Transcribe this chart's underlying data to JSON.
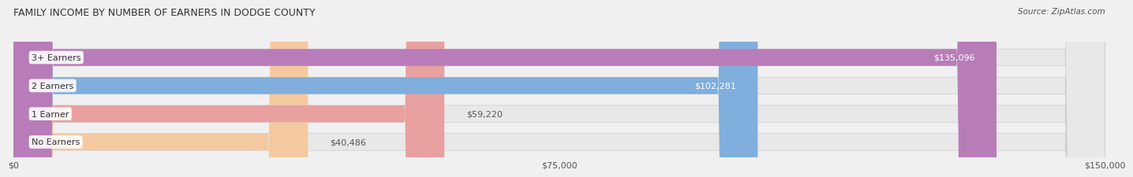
{
  "title": "FAMILY INCOME BY NUMBER OF EARNERS IN DODGE COUNTY",
  "source": "Source: ZipAtlas.com",
  "categories": [
    "No Earners",
    "1 Earner",
    "2 Earners",
    "3+ Earners"
  ],
  "values": [
    40486,
    59220,
    102281,
    135096
  ],
  "bar_colors": [
    "#f5c9a0",
    "#e8a0a0",
    "#80aedd",
    "#b87db8"
  ],
  "label_colors_inside": [
    "#555555",
    "#555555",
    "#ffffff",
    "#ffffff"
  ],
  "xmax": 150000,
  "xticklabels": [
    "$0",
    "$75,000",
    "$150,000"
  ],
  "xtick_values": [
    0,
    75000,
    150000
  ],
  "background_color": "#f0f0f0",
  "bar_bg_color": "#e8e8e8",
  "title_fontsize": 9,
  "source_fontsize": 7.5,
  "label_fontsize": 8,
  "category_fontsize": 8,
  "tick_fontsize": 8
}
